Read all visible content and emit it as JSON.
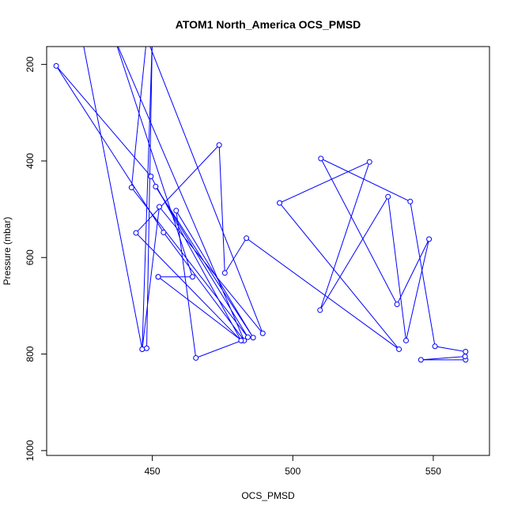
{
  "chart_data": {
    "type": "line",
    "title": "ATOM1 North_America OCS_PMSD",
    "xlabel": "OCS_PMSD",
    "ylabel": "Pressure (mbar)",
    "xlim": [
      412.4,
      570.0
    ],
    "ylim": [
      1010,
      163
    ],
    "x_ticks": [
      450,
      500,
      550
    ],
    "x_tick_labels": [
      "450",
      "500",
      "550"
    ],
    "y_ticks": [
      200,
      400,
      600,
      800,
      1000
    ],
    "y_tick_labels": [
      "200",
      "400",
      "600",
      "800",
      "1000"
    ],
    "grid": false,
    "legend": "none",
    "series_color": "#0000ff",
    "series": [
      {
        "x": [
          425,
          446.4,
          450,
          448,
          446.4,
          452.5,
          489.3,
          448,
          442.6,
          484,
          451.2,
          485.9,
          458.5,
          465.5,
          481.8,
          452.1,
          452.1,
          464.3,
          436.5,
          482.7,
          454,
          415.8,
          449.5,
          481.6,
          444.2,
          473.8,
          475.8,
          483.5,
          537.8,
          495.3,
          527.3,
          509.7,
          533.9,
          540.3,
          548.5,
          537.1,
          510,
          541.8,
          550.6,
          561.5,
          561.5,
          545.6,
          561.3
        ],
        "y": [
          145,
          790,
          145,
          788,
          790,
          495,
          757,
          145,
          455,
          765,
          453,
          766,
          503,
          808,
          772,
          640,
          640,
          640,
          145,
          772,
          548,
          203,
          432,
          772,
          549,
          367,
          632,
          560,
          790,
          487,
          402,
          709,
          474,
          772,
          562,
          697,
          395,
          484,
          784,
          795,
          812,
          812,
          805
        ]
      }
    ]
  }
}
